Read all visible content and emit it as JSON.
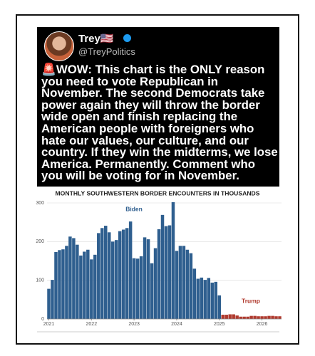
{
  "post": {
    "name": "Trey🇺🇸",
    "handle": "@TreyPolitics",
    "text": "🚨WOW:  This chart is the ONLY reason you need to vote Republican in November. The second Democrats take power again they will throw the border wide open and finish replacing the American people with foreigners who hate our values, our culture, and our country. If they win the midterms, we lose America. Permanently. Comment who you will be voting for in November."
  },
  "chart_data": {
    "type": "bar",
    "title": "MONTHLY SOUTHWESTERN BORDER ENCOUNTERS IN THOUSANDS",
    "categories": [
      "2021",
      null,
      null,
      null,
      null,
      null,
      null,
      null,
      null,
      null,
      null,
      null,
      "2022",
      null,
      null,
      null,
      null,
      null,
      null,
      null,
      null,
      null,
      null,
      null,
      "2023",
      null,
      null,
      null,
      null,
      null,
      null,
      null,
      null,
      null,
      null,
      null,
      "2024",
      null,
      null,
      null,
      null,
      null,
      null,
      null,
      null,
      null,
      null,
      null,
      "2025",
      null,
      null,
      null,
      null,
      null,
      null,
      null,
      null,
      null,
      null,
      null,
      "2026",
      null,
      null,
      null,
      null,
      null
    ],
    "series": [
      {
        "name": "Biden",
        "color": "#2f5f8f",
        "values": [
          78,
          101,
          173,
          178,
          180,
          189,
          213,
          209,
          192,
          164,
          174,
          179,
          154,
          166,
          222,
          235,
          241,
          224,
          200,
          204,
          227,
          231,
          235,
          252,
          157,
          156,
          162,
          211,
          206,
          144,
          183,
          232,
          269,
          240,
          242,
          302,
          176,
          189,
          189,
          179,
          170,
          130,
          104,
          107,
          101,
          106,
          94,
          96,
          61,
          null,
          null,
          null,
          null,
          null,
          null,
          null,
          null,
          null,
          null,
          null,
          null,
          null,
          null,
          null,
          null,
          null
        ]
      },
      {
        "name": "Trump",
        "color": "#b03a2e",
        "values": [
          null,
          null,
          null,
          null,
          null,
          null,
          null,
          null,
          null,
          null,
          null,
          null,
          null,
          null,
          null,
          null,
          null,
          null,
          null,
          null,
          null,
          null,
          null,
          null,
          null,
          null,
          null,
          null,
          null,
          null,
          null,
          null,
          null,
          null,
          null,
          null,
          null,
          null,
          null,
          null,
          null,
          null,
          null,
          null,
          null,
          null,
          null,
          null,
          null,
          11,
          11,
          12,
          12,
          9,
          6,
          6,
          6,
          8,
          8,
          7,
          7,
          7,
          8,
          8,
          7,
          7
        ]
      }
    ],
    "ylim": [
      0,
      300
    ],
    "yticks": [
      0,
      100,
      200,
      300
    ],
    "grid": true
  }
}
